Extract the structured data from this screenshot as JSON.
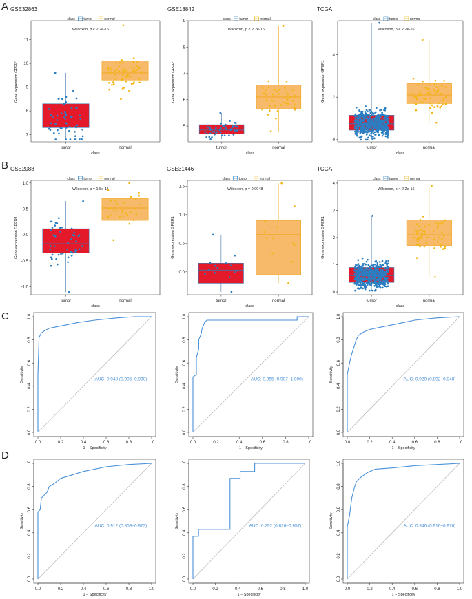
{
  "panel_labels": [
    "A",
    "B",
    "C",
    "D"
  ],
  "colors": {
    "tumor_box": "#e41a2a",
    "tumor_pt": "#2b7ec1",
    "normal_box": "#f7b96a",
    "normal_pt": "#f2b716",
    "roc_line": "#4a90d9",
    "diag": "#bbbbbb"
  },
  "chart_data": [
    {
      "type": "box",
      "id": "A1",
      "title": "GSE32863",
      "legend": {
        "title": "class",
        "items": [
          "tumor",
          "normal"
        ]
      },
      "test": "Wilcoxon, p < 2.2e-16",
      "xlabel": "class",
      "ylabel": "Gene expression GPER1",
      "categories": [
        "tumor",
        "normal"
      ],
      "ylim": [
        6.7,
        11.8
      ],
      "yticks": [
        7,
        8,
        9,
        10,
        11
      ],
      "boxes": [
        {
          "q1": 7.3,
          "median": 7.7,
          "q3": 8.3,
          "min": 6.8,
          "max": 9.6,
          "n": 58,
          "spread": 0.9
        },
        {
          "q1": 9.3,
          "median": 9.6,
          "q3": 10.1,
          "min": 8.5,
          "max": 11.6,
          "n": 58,
          "spread": 0.6
        }
      ]
    },
    {
      "type": "box",
      "id": "A2",
      "title": "GSE18842",
      "legend": {
        "title": "class",
        "items": [
          "tumor",
          "normal"
        ]
      },
      "test": "Wilcoxon, p < 2.2e-16",
      "xlabel": "class",
      "ylabel": "Gene expression GPER1",
      "categories": [
        "tumor",
        "normal"
      ],
      "ylim": [
        4.4,
        9.0
      ],
      "yticks": [
        5,
        6,
        7,
        8,
        9
      ],
      "boxes": [
        {
          "q1": 4.7,
          "median": 4.85,
          "q3": 5.05,
          "min": 4.5,
          "max": 5.5,
          "n": 45,
          "spread": 0.3
        },
        {
          "q1": 5.65,
          "median": 6.1,
          "q3": 6.55,
          "min": 4.8,
          "max": 8.8,
          "n": 45,
          "spread": 0.7
        }
      ]
    },
    {
      "type": "box",
      "id": "A3",
      "title": "TCGA",
      "legend": {
        "title": "class",
        "items": [
          "tumor",
          "normal"
        ]
      },
      "test": "Wilcoxon, p < 2.2e-16",
      "xlabel": "class",
      "ylabel": "Gene expression GPER1",
      "categories": [
        "tumor",
        "normal"
      ],
      "ylim": [
        -0.1,
        5.6
      ],
      "yticks": [
        0,
        2,
        4
      ],
      "boxes": [
        {
          "q1": 0.45,
          "median": 0.75,
          "q3": 1.15,
          "min": 0.0,
          "max": 5.5,
          "n": 500,
          "spread": 0.55
        },
        {
          "q1": 1.7,
          "median": 2.1,
          "q3": 2.65,
          "min": 0.8,
          "max": 4.7,
          "n": 58,
          "spread": 0.8
        }
      ]
    },
    {
      "type": "box",
      "id": "B1",
      "title": "GSE2088",
      "legend": {
        "title": "class",
        "items": [
          "tumor",
          "normal"
        ]
      },
      "test": "Wilcoxon, p = 1.5e-11",
      "xlabel": "class",
      "ylabel": "Gene expression GPER1",
      "categories": [
        "tumor",
        "normal"
      ],
      "ylim": [
        -1.15,
        1.05
      ],
      "yticks": [
        -1.0,
        -0.5,
        0.0,
        0.5,
        1.0
      ],
      "boxes": [
        {
          "q1": -0.35,
          "median": -0.17,
          "q3": 0.12,
          "min": -1.1,
          "max": 0.65,
          "n": 48,
          "spread": 0.35
        },
        {
          "q1": 0.28,
          "median": 0.52,
          "q3": 0.7,
          "min": -0.1,
          "max": 1.0,
          "n": 30,
          "spread": 0.3
        }
      ]
    },
    {
      "type": "box",
      "id": "B2",
      "title": "GSE31446",
      "legend": {
        "title": "class",
        "items": [
          "tumor",
          "normal"
        ]
      },
      "test": "Wilcoxon, p = 0.0048",
      "xlabel": "class",
      "ylabel": "Gene expression GPER1",
      "categories": [
        "tumor",
        "normal"
      ],
      "ylim": [
        -0.4,
        1.6
      ],
      "yticks": [
        0.0,
        0.5,
        1.0,
        1.5
      ],
      "boxes": [
        {
          "q1": -0.2,
          "median": 0.03,
          "q3": 0.15,
          "min": -0.35,
          "max": 0.65,
          "n": 14,
          "spread": 0.25
        },
        {
          "q1": -0.05,
          "median": 0.65,
          "q3": 0.9,
          "min": -0.2,
          "max": 1.55,
          "n": 12,
          "spread": 0.45
        }
      ]
    },
    {
      "type": "box",
      "id": "B3",
      "title": "TCGA",
      "legend": {
        "title": "class",
        "items": [
          "tumor",
          "normal"
        ]
      },
      "test": "Wilcoxon, p < 2.2e-16",
      "xlabel": "class",
      "ylabel": "Gene expression GPER1",
      "categories": [
        "tumor",
        "normal"
      ],
      "ylim": [
        -0.1,
        4.1
      ],
      "yticks": [
        0,
        1,
        2,
        3,
        4
      ],
      "boxes": [
        {
          "q1": 0.35,
          "median": 0.6,
          "q3": 0.9,
          "min": 0.05,
          "max": 2.8,
          "n": 500,
          "spread": 0.45
        },
        {
          "q1": 1.7,
          "median": 2.1,
          "q3": 2.65,
          "min": 0.55,
          "max": 3.9,
          "n": 58,
          "spread": 0.7
        }
      ]
    },
    {
      "type": "roc",
      "id": "C1",
      "auc_label": "AUC: 0.948 (0.905–0.990)",
      "xlabel": "1 − Specificity",
      "ylabel": "Sensitivity",
      "xlim": [
        0,
        1
      ],
      "ylim": [
        0,
        1
      ],
      "ticks": [
        0.0,
        0.2,
        0.4,
        0.6,
        0.8,
        1.0
      ],
      "points": [
        [
          0,
          0
        ],
        [
          0,
          0.5
        ],
        [
          0.01,
          0.82
        ],
        [
          0.03,
          0.86
        ],
        [
          0.06,
          0.88
        ],
        [
          0.1,
          0.9
        ],
        [
          0.15,
          0.91
        ],
        [
          0.25,
          0.93
        ],
        [
          0.35,
          0.95
        ],
        [
          0.5,
          0.97
        ],
        [
          0.7,
          0.99
        ],
        [
          0.85,
          1.0
        ],
        [
          1,
          1
        ]
      ]
    },
    {
      "type": "roc",
      "id": "C2",
      "auc_label": "AUC: 0.955 (0.907–1.000)",
      "xlabel": "1 − Specificity",
      "ylabel": "Sensitivity",
      "xlim": [
        0,
        1
      ],
      "ylim": [
        0,
        1
      ],
      "ticks": [
        0.0,
        0.2,
        0.4,
        0.6,
        0.8,
        1.0
      ],
      "points": [
        [
          0,
          0
        ],
        [
          0,
          0.48
        ],
        [
          0.03,
          0.5
        ],
        [
          0.03,
          0.65
        ],
        [
          0.05,
          0.72
        ],
        [
          0.05,
          0.8
        ],
        [
          0.07,
          0.85
        ],
        [
          0.08,
          0.9
        ],
        [
          0.1,
          0.95
        ],
        [
          0.12,
          0.97
        ],
        [
          0.9,
          0.97
        ],
        [
          0.9,
          1.0
        ],
        [
          1,
          1
        ]
      ]
    },
    {
      "type": "roc",
      "id": "C3",
      "auc_label": "AUC: 0.920 (0.892–0.948)",
      "xlabel": "1 − Specificity",
      "ylabel": "Sensitivity",
      "xlim": [
        0,
        1
      ],
      "ylim": [
        0,
        1
      ],
      "ticks": [
        0.0,
        0.2,
        0.4,
        0.6,
        0.8,
        1.0
      ],
      "points": [
        [
          0,
          0
        ],
        [
          0,
          0.5
        ],
        [
          0.02,
          0.6
        ],
        [
          0.04,
          0.68
        ],
        [
          0.06,
          0.74
        ],
        [
          0.08,
          0.8
        ],
        [
          0.1,
          0.84
        ],
        [
          0.15,
          0.87
        ],
        [
          0.2,
          0.89
        ],
        [
          0.3,
          0.91
        ],
        [
          0.4,
          0.93
        ],
        [
          0.5,
          0.95
        ],
        [
          0.6,
          0.97
        ],
        [
          0.8,
          0.99
        ],
        [
          1,
          1
        ]
      ]
    },
    {
      "type": "roc",
      "id": "D1",
      "auc_label": "AUC: 0.912 (0.853–0.972)",
      "xlabel": "1 − Specificity",
      "ylabel": "Sensitivity",
      "xlim": [
        0,
        1
      ],
      "ylim": [
        0,
        1
      ],
      "ticks": [
        0.0,
        0.2,
        0.4,
        0.6,
        0.8,
        1.0
      ],
      "points": [
        [
          0,
          0
        ],
        [
          0,
          0.58
        ],
        [
          0.02,
          0.6
        ],
        [
          0.03,
          0.7
        ],
        [
          0.08,
          0.75
        ],
        [
          0.1,
          0.8
        ],
        [
          0.15,
          0.83
        ],
        [
          0.2,
          0.87
        ],
        [
          0.3,
          0.9
        ],
        [
          0.4,
          0.93
        ],
        [
          0.5,
          0.95
        ],
        [
          0.6,
          0.97
        ],
        [
          0.8,
          0.99
        ],
        [
          1,
          1
        ]
      ]
    },
    {
      "type": "roc",
      "id": "D2",
      "auc_label": "AUC: 0.792 (0.626–0.957)",
      "xlabel": "1 − Specificity",
      "ylabel": "Sensitivity",
      "xlim": [
        0,
        1
      ],
      "ylim": [
        0,
        1
      ],
      "ticks": [
        0.0,
        0.2,
        0.4,
        0.6,
        0.8,
        1.0
      ],
      "points": [
        [
          0,
          0
        ],
        [
          0,
          0.37
        ],
        [
          0.05,
          0.37
        ],
        [
          0.05,
          0.43
        ],
        [
          0.33,
          0.43
        ],
        [
          0.33,
          0.87
        ],
        [
          0.42,
          0.87
        ],
        [
          0.42,
          0.93
        ],
        [
          0.55,
          0.93
        ],
        [
          0.55,
          1.0
        ],
        [
          1,
          1
        ]
      ]
    },
    {
      "type": "roc",
      "id": "D3",
      "auc_label": "AUC: 0.946 (0.916–0.976)",
      "xlabel": "1 − Specificity",
      "ylabel": "Sensitivity",
      "xlim": [
        0,
        1
      ],
      "ylim": [
        0,
        1
      ],
      "ticks": [
        0.0,
        0.2,
        0.4,
        0.6,
        0.8,
        1.0
      ],
      "points": [
        [
          0,
          0
        ],
        [
          0,
          0.45
        ],
        [
          0.02,
          0.55
        ],
        [
          0.04,
          0.7
        ],
        [
          0.06,
          0.78
        ],
        [
          0.08,
          0.84
        ],
        [
          0.12,
          0.88
        ],
        [
          0.18,
          0.92
        ],
        [
          0.25,
          0.95
        ],
        [
          0.4,
          0.96
        ],
        [
          0.6,
          0.98
        ],
        [
          0.8,
          0.99
        ],
        [
          1,
          1
        ]
      ]
    }
  ]
}
